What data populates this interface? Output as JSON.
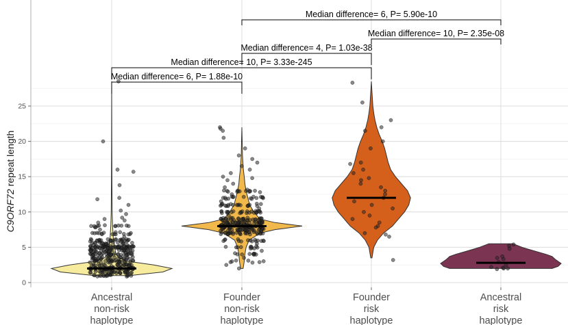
{
  "chart_data": {
    "type": "violin",
    "title": "",
    "xlabel": "",
    "ylabel": "C9ORF72 repeat length",
    "ylabel_parts": [
      {
        "text": "C9ORF72",
        "italic": true
      },
      {
        "text": " repeat length",
        "italic": false
      }
    ],
    "ylim": [
      0,
      30
    ],
    "yticks": [
      0,
      5,
      10,
      15,
      20,
      25
    ],
    "grid": true,
    "legend": "none",
    "categories": [
      {
        "lines": [
          "Ancestral",
          "non-risk",
          "haplotype"
        ]
      },
      {
        "lines": [
          "Founder",
          "non-risk",
          "haplotype"
        ]
      },
      {
        "lines": [
          "Founder",
          "risk",
          "haplotype"
        ]
      },
      {
        "lines": [
          "Ancestral",
          "risk",
          "haplotype"
        ]
      }
    ],
    "series": [
      {
        "fill": "#f7ec9e",
        "median": 2,
        "min": 1,
        "max": 28.5,
        "density": [
          [
            1,
            0.3
          ],
          [
            1.5,
            0.85
          ],
          [
            2,
            1.0
          ],
          [
            2.5,
            0.7
          ],
          [
            3,
            0.28
          ],
          [
            3.5,
            0.12
          ],
          [
            4,
            0.07
          ],
          [
            5,
            0.05
          ],
          [
            6,
            0.03
          ],
          [
            8,
            0.015
          ],
          [
            10,
            0.008
          ],
          [
            14,
            0.004
          ],
          [
            20,
            0.002
          ],
          [
            28.5,
            0
          ]
        ]
      },
      {
        "fill": "#f1b84b",
        "median": 8,
        "min": 2,
        "max": 22,
        "density": [
          [
            2,
            0.02
          ],
          [
            3,
            0.04
          ],
          [
            4,
            0.05
          ],
          [
            5,
            0.07
          ],
          [
            6,
            0.12
          ],
          [
            7,
            0.3
          ],
          [
            7.5,
            0.55
          ],
          [
            8,
            1.0
          ],
          [
            8.5,
            0.55
          ],
          [
            9,
            0.3
          ],
          [
            10,
            0.2
          ],
          [
            11,
            0.13
          ],
          [
            12,
            0.1
          ],
          [
            13,
            0.07
          ],
          [
            14,
            0.05
          ],
          [
            15,
            0.04
          ],
          [
            16,
            0.025
          ],
          [
            18,
            0.01
          ],
          [
            20,
            0.006
          ],
          [
            22,
            0
          ]
        ]
      },
      {
        "fill": "#d4601c",
        "median": 12,
        "min": 3.5,
        "max": 28.5,
        "density": [
          [
            3.5,
            0.01
          ],
          [
            5,
            0.04
          ],
          [
            6,
            0.1
          ],
          [
            7,
            0.2
          ],
          [
            8,
            0.35
          ],
          [
            9,
            0.45
          ],
          [
            10,
            0.55
          ],
          [
            11,
            0.62
          ],
          [
            12,
            0.65
          ],
          [
            13,
            0.6
          ],
          [
            14,
            0.5
          ],
          [
            15,
            0.4
          ],
          [
            16,
            0.32
          ],
          [
            17,
            0.28
          ],
          [
            18,
            0.25
          ],
          [
            19,
            0.22
          ],
          [
            20,
            0.18
          ],
          [
            21,
            0.13
          ],
          [
            22,
            0.09
          ],
          [
            23,
            0.06
          ],
          [
            24,
            0.04
          ],
          [
            25,
            0.025
          ],
          [
            27,
            0.01
          ],
          [
            28.5,
            0
          ]
        ]
      },
      {
        "fill": "#7b3452",
        "median": 2.8,
        "min": 2,
        "max": 5.5,
        "density": [
          [
            2,
            0.85
          ],
          [
            2.3,
            0.95
          ],
          [
            2.7,
            1.0
          ],
          [
            3,
            0.95
          ],
          [
            3.3,
            0.9
          ],
          [
            3.7,
            0.85
          ],
          [
            4,
            0.75
          ],
          [
            4.5,
            0.55
          ],
          [
            5,
            0.35
          ],
          [
            5.5,
            0.2
          ]
        ]
      }
    ],
    "points": [
      {
        "values": [
          28.5,
          20,
          16,
          15.7,
          13.8,
          12,
          11.8,
          11,
          10.2,
          9.7,
          9.2,
          9,
          8.8,
          8.5,
          8,
          7.5,
          7,
          6.5,
          6
        ],
        "clusters": [
          [
            1,
            20
          ],
          [
            1.5,
            30
          ],
          [
            2,
            55
          ],
          [
            2.5,
            25
          ],
          [
            3,
            30
          ],
          [
            3.5,
            25
          ],
          [
            4,
            35
          ],
          [
            4.5,
            30
          ],
          [
            5,
            60
          ],
          [
            5.5,
            20
          ],
          [
            6,
            25
          ],
          [
            7,
            15
          ],
          [
            8,
            12
          ]
        ]
      },
      {
        "values": [
          22,
          21.8,
          21.5,
          20.5,
          19,
          18,
          17.5,
          17,
          16.5,
          16,
          15.5,
          15,
          14.8,
          14.5,
          14,
          13.5,
          13,
          12.8,
          12.5,
          12,
          11.5,
          11,
          10.5,
          10,
          9.5,
          9,
          6,
          5.5,
          5,
          4.5,
          4,
          3.5,
          3,
          2.5,
          2
        ],
        "clusters": [
          [
            7,
            30
          ],
          [
            7.5,
            35
          ],
          [
            8,
            60
          ],
          [
            8.5,
            35
          ],
          [
            9,
            30
          ],
          [
            10,
            25
          ],
          [
            11,
            20
          ],
          [
            12,
            15
          ],
          [
            13,
            12
          ],
          [
            6,
            14
          ],
          [
            5,
            10
          ],
          [
            4,
            8
          ],
          [
            3,
            6
          ]
        ]
      },
      {
        "values": [
          28.3,
          25.5,
          23,
          22,
          21.5,
          20,
          19,
          17,
          16.8,
          16,
          15.5,
          14.8,
          14.5,
          14,
          13.5,
          13,
          12.5,
          12,
          11.5,
          11,
          10.5,
          10,
          9.5,
          9,
          8.5,
          8,
          7.8,
          7,
          6.8,
          6.5,
          3.2
        ],
        "clusters": []
      },
      {
        "values": [
          5.4,
          5.2,
          4.8,
          3.7,
          3.5,
          3.3,
          2.9,
          2.5,
          2.2,
          2.1,
          2.0,
          2.0,
          1.9
        ],
        "clusters": []
      }
    ],
    "annotations": [
      {
        "label": "Median difference= 6, P= 5.90e-10",
        "from": 1,
        "to": 3,
        "y": 5.4
      },
      {
        "label": "Median difference= 10, P= 2.35e-08",
        "from": 2,
        "to": 3,
        "y": 4.4
      },
      {
        "label": "Median difference= 4, P= 1.03e-38",
        "from": 1,
        "to": 2,
        "y": 3.4
      },
      {
        "label": "Median difference= 10, P= 3.33e-245",
        "from": 0,
        "to": 2,
        "y": 2.4
      },
      {
        "label": "Median difference= 6, P= 1.88e-10",
        "from": 0,
        "to": 1,
        "y": 1.3
      }
    ]
  }
}
